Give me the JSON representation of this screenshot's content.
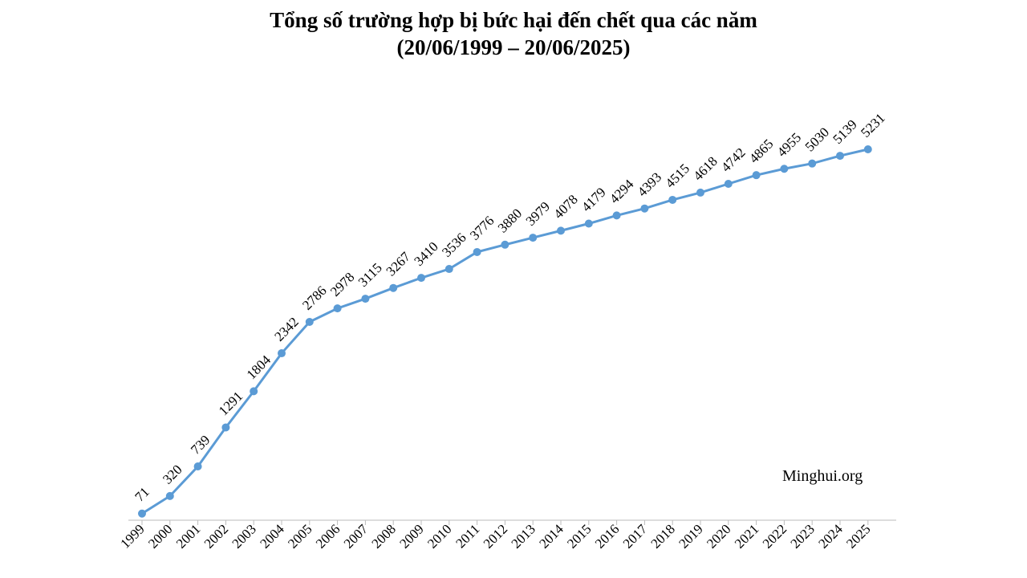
{
  "chart_data": {
    "type": "line",
    "title": "Tổng số trường hợp bị bức hại đến chết qua các năm",
    "subtitle": "(20/06/1999 – 20/06/2025)",
    "annotation": "Minghui.org",
    "categories": [
      "1999",
      "2000",
      "2001",
      "2002",
      "2003",
      "2004",
      "2005",
      "2006",
      "2007",
      "2008",
      "2009",
      "2010",
      "2011",
      "2012",
      "2013",
      "2014",
      "2015",
      "2016",
      "2017",
      "2018",
      "2019",
      "2020",
      "2021",
      "2022",
      "2023",
      "2024",
      "2025"
    ],
    "values": [
      71,
      320,
      739,
      1291,
      1804,
      2342,
      2786,
      2978,
      3115,
      3267,
      3410,
      3536,
      3776,
      3880,
      3979,
      4078,
      4179,
      4294,
      4393,
      4515,
      4618,
      4742,
      4865,
      4955,
      5030,
      5139,
      5231
    ],
    "color": "#5b9bd5"
  }
}
